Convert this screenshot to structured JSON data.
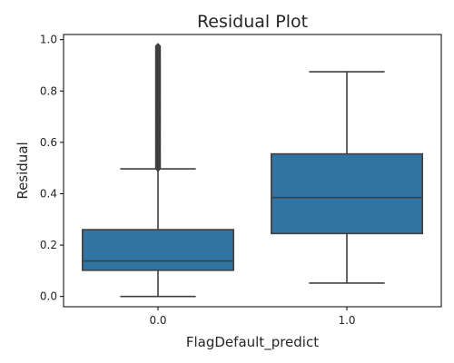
{
  "chart_data": {
    "type": "box",
    "title": "Residual Plot",
    "xlabel": "FlagDefault_predict",
    "ylabel": "Residual",
    "categories": [
      "0.0",
      "1.0"
    ],
    "ylim": [
      -0.04,
      1.02
    ],
    "yticks": [
      0.0,
      0.2,
      0.4,
      0.6,
      0.8,
      1.0
    ],
    "ytick_labels": [
      "0.0",
      "0.2",
      "0.4",
      "0.6",
      "0.8",
      "1.0"
    ],
    "grid": false,
    "legend": "none",
    "box_color": "#3274a1",
    "line_color": "#3f3f3f",
    "boxes": [
      {
        "category": "0.0",
        "whisker_low": 0.0,
        "q1": 0.102,
        "median": 0.138,
        "q3": 0.26,
        "whisker_high": 0.497,
        "outliers_range": [
          0.497,
          0.975
        ]
      },
      {
        "category": "1.0",
        "whisker_low": 0.052,
        "q1": 0.245,
        "median": 0.385,
        "q3": 0.555,
        "whisker_high": 0.875,
        "outliers_range": []
      }
    ]
  }
}
